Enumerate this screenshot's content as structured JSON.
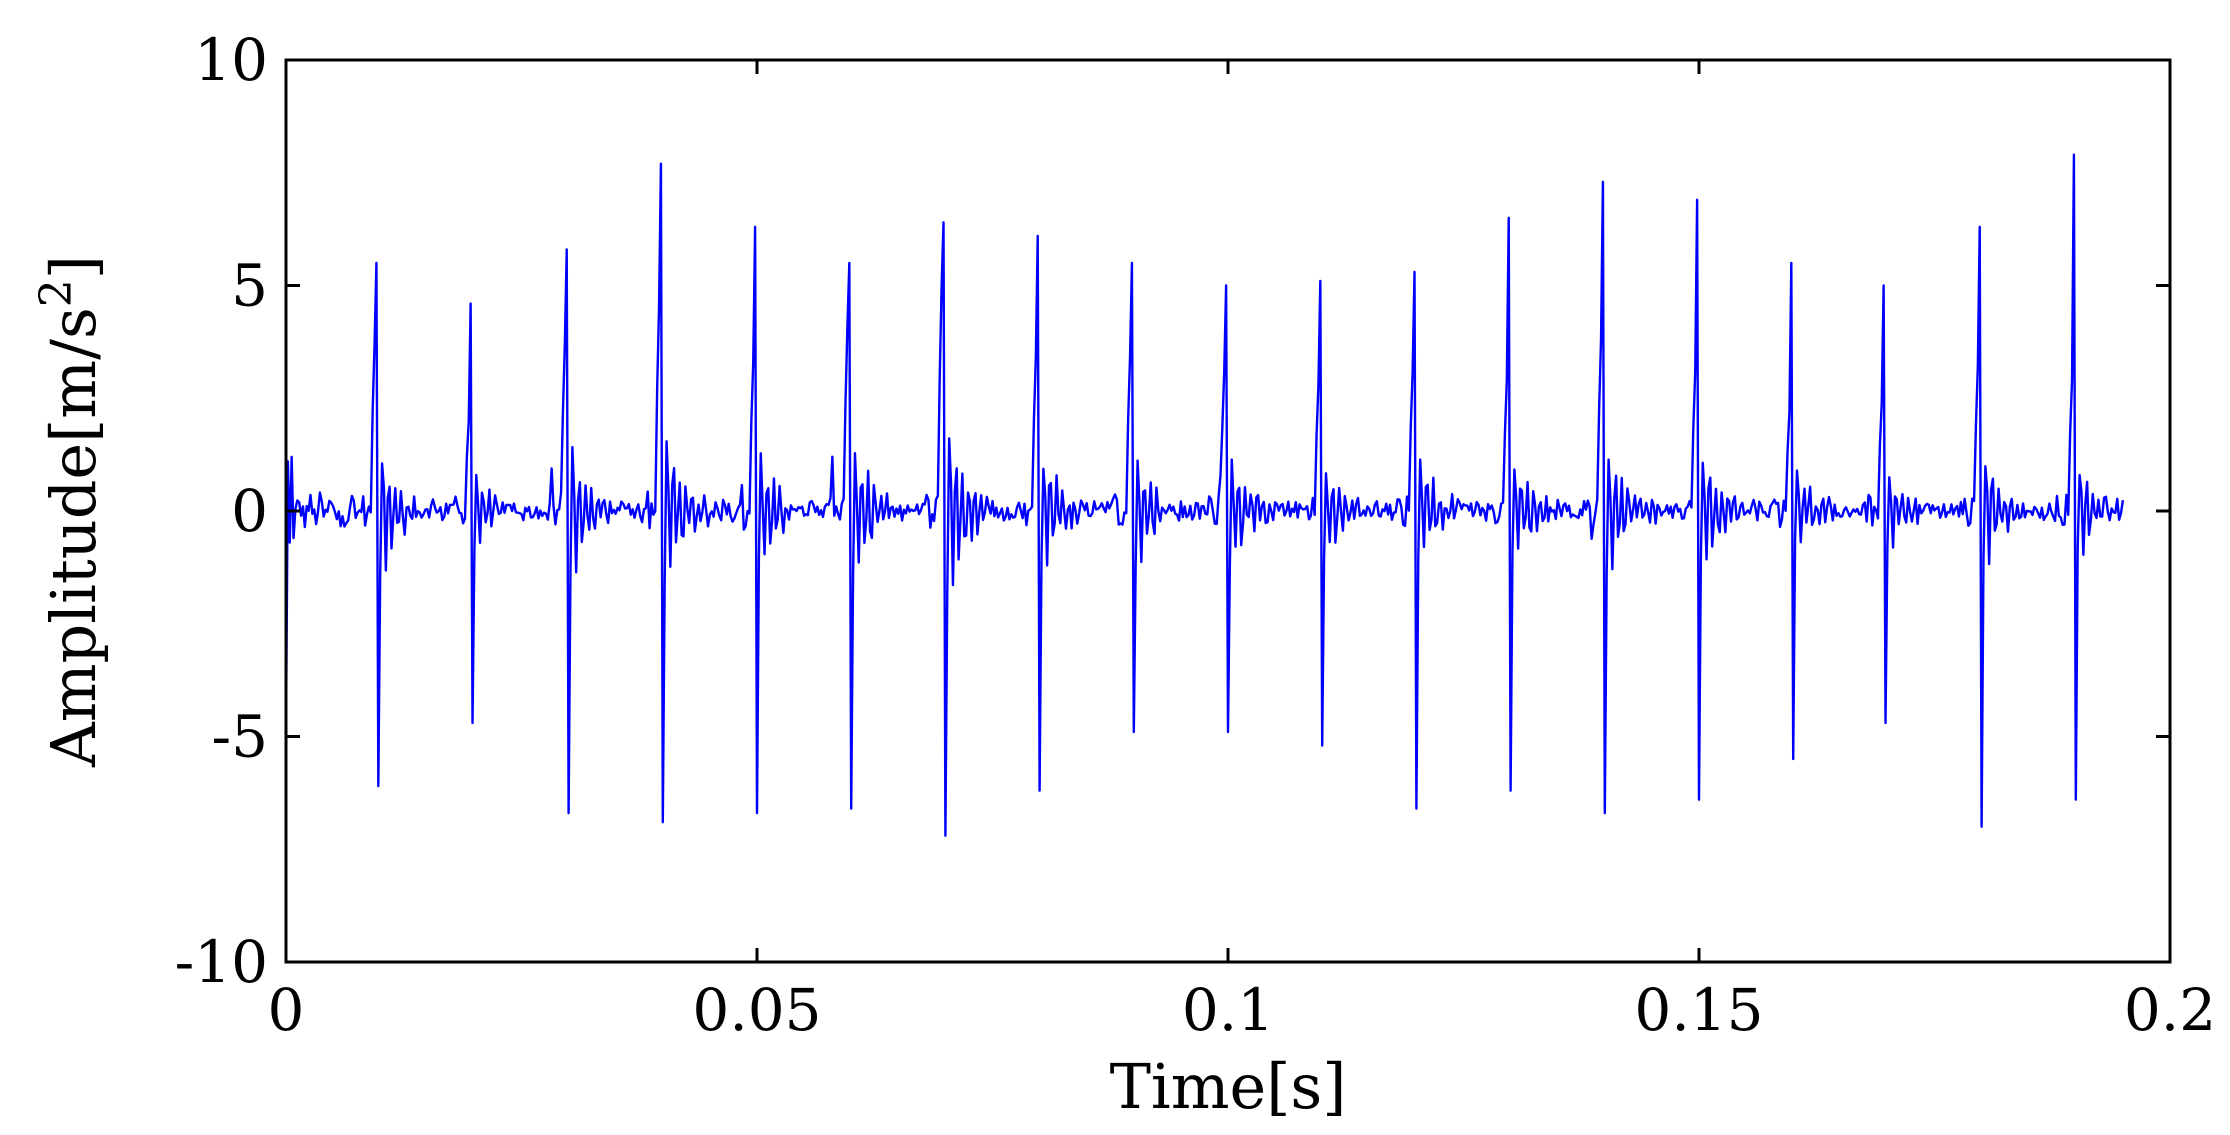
{
  "chart_data": {
    "type": "line",
    "title": "",
    "xlabel": "Time[s]",
    "ylabel": "Amplitude[m/s²]",
    "ylabel_parts": {
      "main": "Amplitude[m/s",
      "sup": "2",
      "close": "]"
    },
    "xlim": [
      0,
      0.2
    ],
    "ylim": [
      -10,
      10
    ],
    "x_ticks": [
      0,
      0.05,
      0.1,
      0.15,
      0.2
    ],
    "x_tick_labels": [
      "0",
      "0.05",
      "0.1",
      "0.15",
      "0.2"
    ],
    "y_ticks": [
      -10,
      -5,
      0,
      5,
      10
    ],
    "y_tick_labels": [
      "-10",
      "-5",
      "0",
      "5",
      "10"
    ],
    "grid": false,
    "legend": "none",
    "line_color": "#0000ff",
    "sample_interval": 0.0002,
    "duration": 0.195,
    "impulse_period": 0.01,
    "impulses": [
      {
        "t": 0.0095,
        "peak": 5.5,
        "trough": -6.1,
        "ring": 3.7
      },
      {
        "t": 0.0195,
        "peak": 4.6,
        "trough": -4.7,
        "ring": 2.0
      },
      {
        "t": 0.0297,
        "peak": 5.8,
        "trough": -6.7,
        "ring": 3.7
      },
      {
        "t": 0.0398,
        "peak": 7.7,
        "trough": -6.9,
        "ring": 4.5
      },
      {
        "t": 0.0498,
        "peak": 6.3,
        "trough": -6.7,
        "ring": 3.3
      },
      {
        "t": 0.0597,
        "peak": 5.5,
        "trough": -6.6,
        "ring": 4.1
      },
      {
        "t": 0.0698,
        "peak": 6.4,
        "trough": -7.2,
        "ring": 5.0
      },
      {
        "t": 0.0798,
        "peak": 6.1,
        "trough": -6.2,
        "ring": 3.4
      },
      {
        "t": 0.0898,
        "peak": 5.5,
        "trough": -4.9,
        "ring": 3.4
      },
      {
        "t": 0.0998,
        "peak": 5.0,
        "trough": -4.9,
        "ring": 3.1
      },
      {
        "t": 0.1098,
        "peak": 5.1,
        "trough": -5.2,
        "ring": 2.8
      },
      {
        "t": 0.1198,
        "peak": 5.3,
        "trough": -6.6,
        "ring": 3.1
      },
      {
        "t": 0.1298,
        "peak": 6.5,
        "trough": -6.2,
        "ring": 2.9
      },
      {
        "t": 0.1398,
        "peak": 7.3,
        "trough": -6.7,
        "ring": 3.8
      },
      {
        "t": 0.1497,
        "peak": 6.9,
        "trough": -6.4,
        "ring": 3.1
      },
      {
        "t": 0.1597,
        "peak": 5.5,
        "trough": -5.5,
        "ring": 2.2
      },
      {
        "t": 0.1697,
        "peak": 5.0,
        "trough": -4.7,
        "ring": 2.4
      },
      {
        "t": 0.1797,
        "peak": 6.3,
        "trough": -7.0,
        "ring": 3.2
      },
      {
        "t": 0.1897,
        "peak": 7.9,
        "trough": -6.4,
        "ring": 2.9
      }
    ]
  }
}
